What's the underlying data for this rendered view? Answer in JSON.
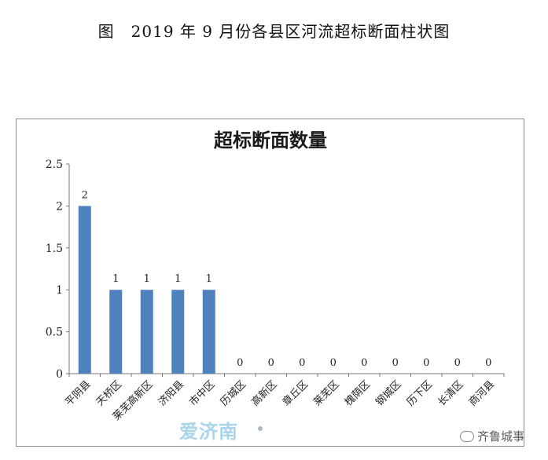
{
  "caption": "图　2019 年 9 月份各县区河流超标断面柱状图",
  "chart_data": {
    "type": "bar",
    "title": "超标断面数量",
    "categories": [
      "平阴县",
      "天桥区",
      "莱芜高新区",
      "济阳县",
      "市中区",
      "历城区",
      "高新区",
      "章丘区",
      "莱芜区",
      "槐荫区",
      "钢城区",
      "历下区",
      "长清区",
      "商河县"
    ],
    "values": [
      2,
      1,
      1,
      1,
      1,
      0,
      0,
      0,
      0,
      0,
      0,
      0,
      0,
      0
    ],
    "ylim": [
      0,
      2.5
    ],
    "yticks": [
      "0",
      "0.5",
      "1",
      "1.5",
      "2",
      "2.5"
    ],
    "bar_color": "#4f81bd",
    "grid": false,
    "legend": "none"
  },
  "watermarks": {
    "left": "爱济南",
    "right": "齐鲁城事"
  }
}
